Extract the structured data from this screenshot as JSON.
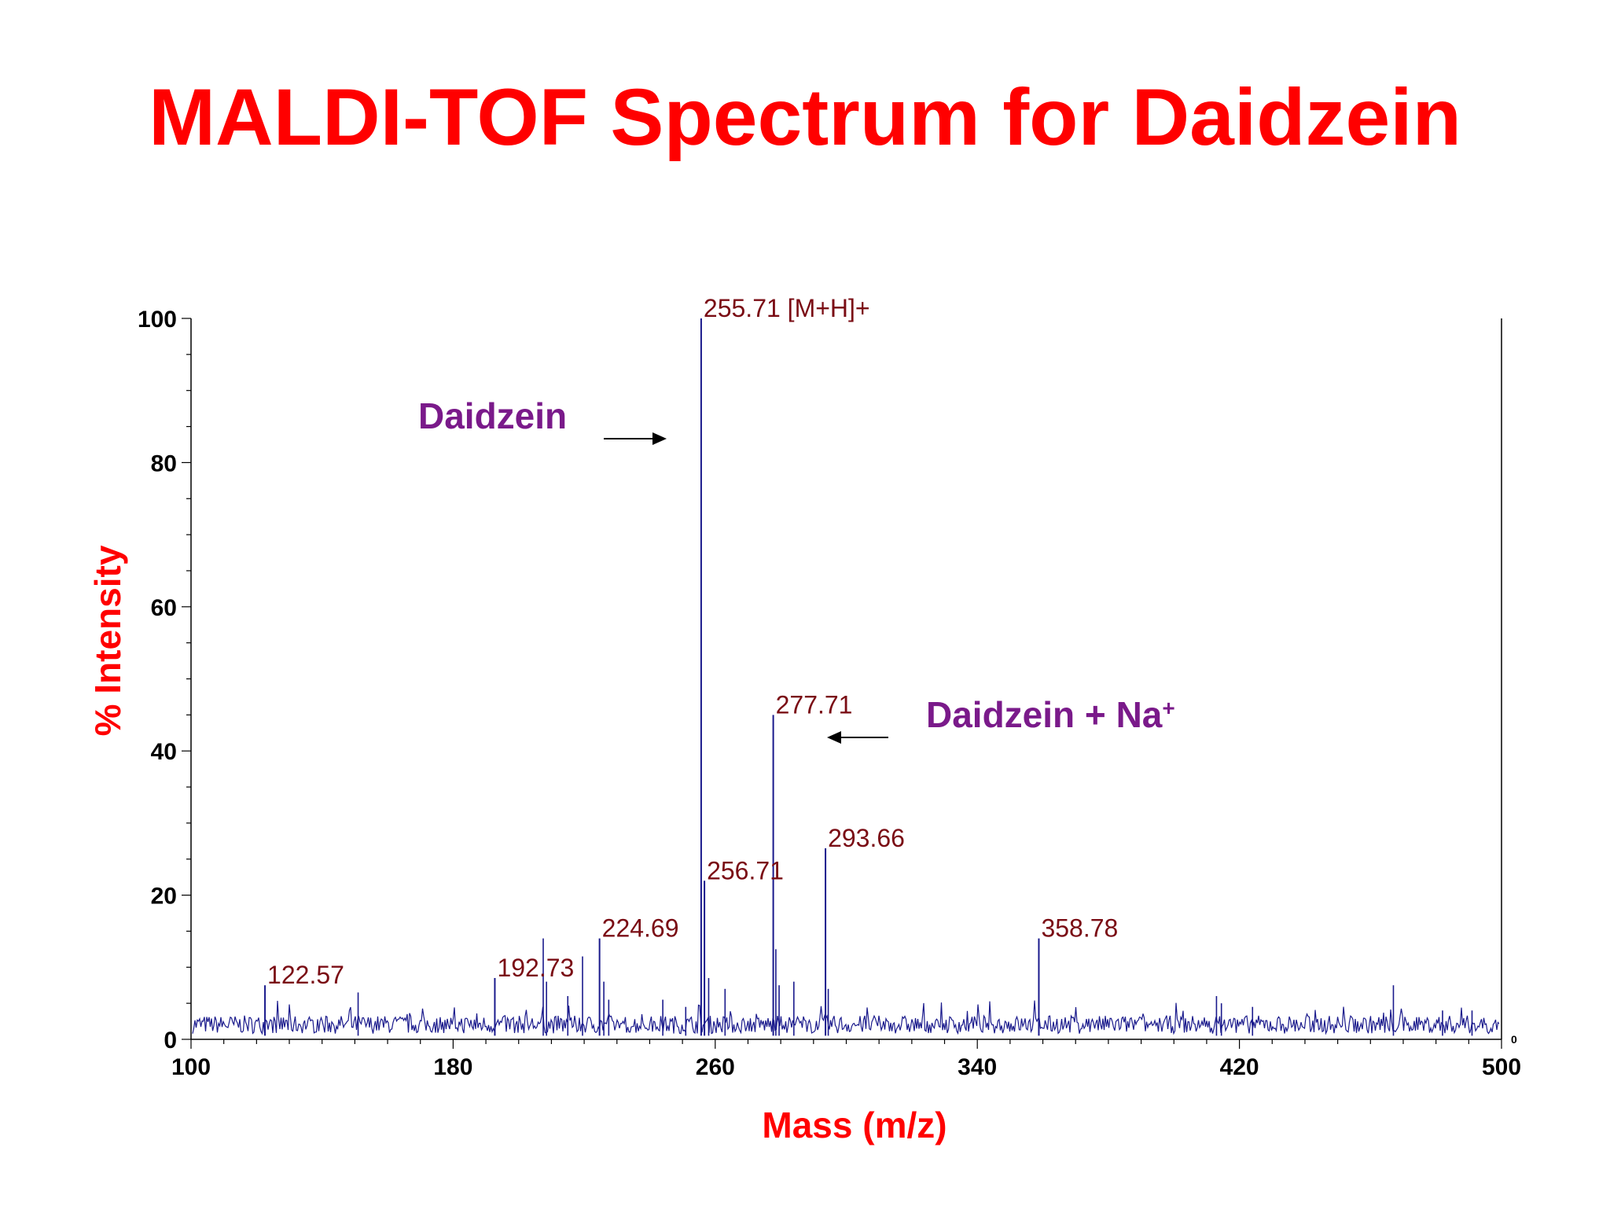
{
  "title": "MALDI-TOF Spectrum for Daidzein",
  "colors": {
    "title": "#ff0000",
    "axis_title": "#ff0000",
    "trace": "#1a1a8c",
    "peak_label": "#7a0c14",
    "annotation": "#7a1a8a"
  },
  "chart_data": {
    "type": "line",
    "title": "MALDI-TOF Spectrum for Daidzein",
    "xlabel": "Mass (m/z)",
    "ylabel": "% Intensity",
    "xlim": [
      100,
      500
    ],
    "ylim": [
      0,
      100
    ],
    "x_ticks": [
      "100",
      "180",
      "260",
      "340",
      "420",
      "500"
    ],
    "y_ticks": [
      "0",
      "20",
      "40",
      "60",
      "80",
      "100"
    ],
    "right_axis_zero_label": "0",
    "grid": false,
    "peaks": [
      {
        "mz": 122.57,
        "intensity": 7.5,
        "label": "122.57"
      },
      {
        "mz": 192.73,
        "intensity": 8.5,
        "label": "192.73"
      },
      {
        "mz": 224.69,
        "intensity": 14.0,
        "label": "224.69"
      },
      {
        "mz": 255.71,
        "intensity": 100.0,
        "label": "255.71 [M+H]+"
      },
      {
        "mz": 256.71,
        "intensity": 22.0,
        "label": "256.71"
      },
      {
        "mz": 277.71,
        "intensity": 45.0,
        "label": "277.71"
      },
      {
        "mz": 293.66,
        "intensity": 26.5,
        "label": "293.66"
      },
      {
        "mz": 358.78,
        "intensity": 14.0,
        "label": "358.78"
      }
    ],
    "minor_peaks": [
      {
        "mz": 151,
        "intensity": 6.5
      },
      {
        "mz": 207.5,
        "intensity": 14.0
      },
      {
        "mz": 208.5,
        "intensity": 8.0
      },
      {
        "mz": 215,
        "intensity": 6.0
      },
      {
        "mz": 219.5,
        "intensity": 11.5
      },
      {
        "mz": 226,
        "intensity": 8.0
      },
      {
        "mz": 227.5,
        "intensity": 5.5
      },
      {
        "mz": 244,
        "intensity": 5.5
      },
      {
        "mz": 251,
        "intensity": 4.5
      },
      {
        "mz": 258,
        "intensity": 8.5
      },
      {
        "mz": 263,
        "intensity": 7.0
      },
      {
        "mz": 278.5,
        "intensity": 12.5
      },
      {
        "mz": 279.5,
        "intensity": 7.5
      },
      {
        "mz": 284,
        "intensity": 8.0
      },
      {
        "mz": 294.5,
        "intensity": 7.0
      },
      {
        "mz": 413,
        "intensity": 6.0
      },
      {
        "mz": 414.5,
        "intensity": 5.0
      },
      {
        "mz": 424,
        "intensity": 4.5
      },
      {
        "mz": 467,
        "intensity": 7.5
      },
      {
        "mz": 482,
        "intensity": 4.0
      },
      {
        "mz": 491,
        "intensity": 4.0
      }
    ],
    "noise_level": 2.5,
    "annotations": [
      {
        "text": "Daidzein",
        "arrow": "right",
        "points_to": "255.71"
      },
      {
        "text": "Daidzein + Na",
        "superscript": "+",
        "arrow": "left",
        "points_to": "277.71"
      }
    ]
  }
}
